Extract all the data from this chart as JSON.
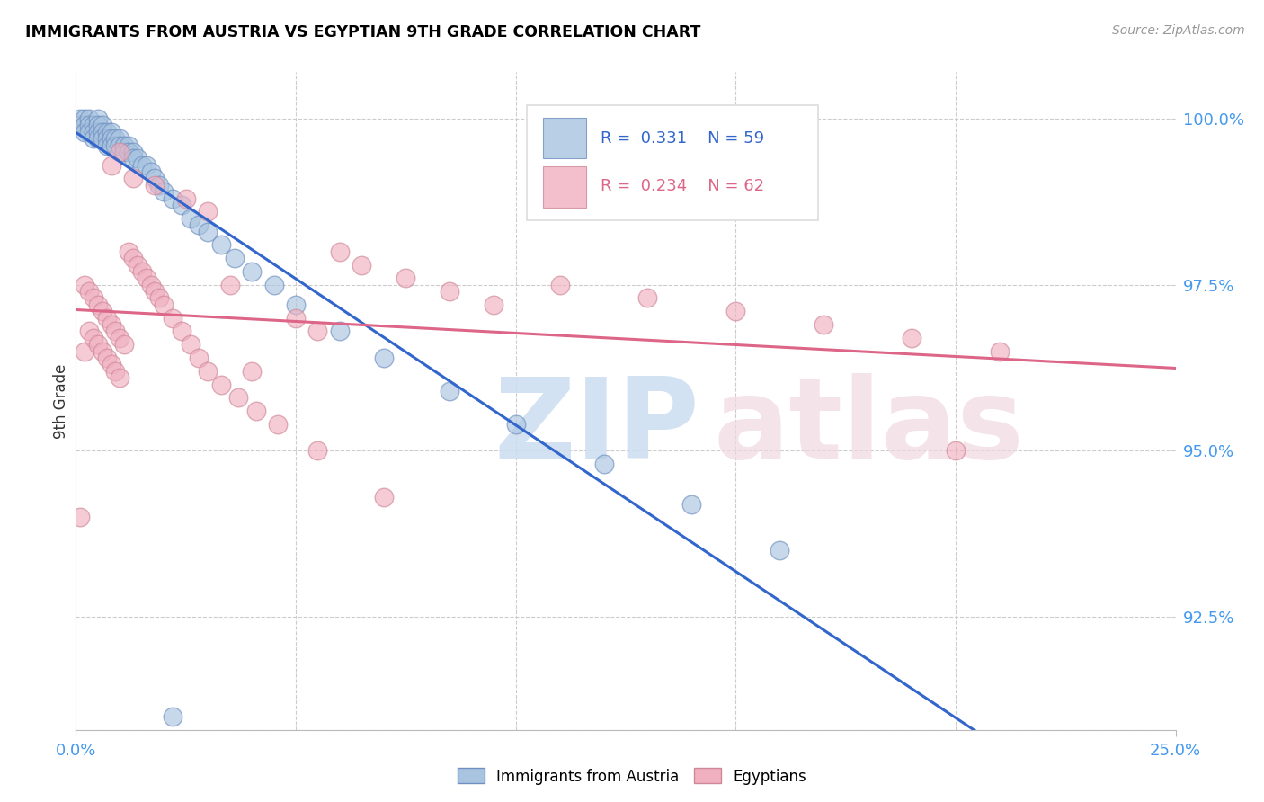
{
  "title": "IMMIGRANTS FROM AUSTRIA VS EGYPTIAN 9TH GRADE CORRELATION CHART",
  "source": "Source: ZipAtlas.com",
  "ylabel": "9th Grade",
  "blue_color": "#a8c4e0",
  "pink_color": "#f0b0c0",
  "blue_line_color": "#3366cc",
  "pink_line_color": "#dd6688",
  "blue_label": "Immigrants from Austria",
  "pink_label": "Egyptians",
  "blue_r": "0.331",
  "blue_n": "59",
  "pink_r": "0.234",
  "pink_n": "62",
  "xmin": 0.0,
  "xmax": 0.25,
  "ymin": 0.908,
  "ymax": 1.007,
  "yticks": [
    0.925,
    0.95,
    0.975,
    1.0
  ],
  "ytick_labels": [
    "92.5%",
    "95.0%",
    "97.5%",
    "100.0%"
  ],
  "blue_points_x": [
    0.001,
    0.001,
    0.002,
    0.002,
    0.002,
    0.003,
    0.003,
    0.003,
    0.004,
    0.004,
    0.004,
    0.005,
    0.005,
    0.005,
    0.005,
    0.006,
    0.006,
    0.006,
    0.007,
    0.007,
    0.007,
    0.008,
    0.008,
    0.008,
    0.009,
    0.009,
    0.01,
    0.01,
    0.011,
    0.011,
    0.012,
    0.012,
    0.013,
    0.013,
    0.014,
    0.015,
    0.016,
    0.017,
    0.018,
    0.019,
    0.02,
    0.022,
    0.024,
    0.026,
    0.028,
    0.03,
    0.033,
    0.036,
    0.04,
    0.045,
    0.05,
    0.06,
    0.07,
    0.085,
    0.1,
    0.12,
    0.14,
    0.16,
    0.022
  ],
  "blue_points_y": [
    1.0,
    0.999,
    1.0,
    0.999,
    0.998,
    1.0,
    0.999,
    0.998,
    0.999,
    0.998,
    0.997,
    1.0,
    0.999,
    0.998,
    0.997,
    0.999,
    0.998,
    0.997,
    0.998,
    0.997,
    0.996,
    0.998,
    0.997,
    0.996,
    0.997,
    0.996,
    0.997,
    0.996,
    0.996,
    0.995,
    0.996,
    0.995,
    0.995,
    0.994,
    0.994,
    0.993,
    0.993,
    0.992,
    0.991,
    0.99,
    0.989,
    0.988,
    0.987,
    0.985,
    0.984,
    0.983,
    0.981,
    0.979,
    0.977,
    0.975,
    0.972,
    0.968,
    0.964,
    0.959,
    0.954,
    0.948,
    0.942,
    0.935,
    0.91
  ],
  "pink_points_x": [
    0.001,
    0.002,
    0.002,
    0.003,
    0.003,
    0.004,
    0.004,
    0.005,
    0.005,
    0.006,
    0.006,
    0.007,
    0.007,
    0.008,
    0.008,
    0.009,
    0.009,
    0.01,
    0.01,
    0.011,
    0.012,
    0.013,
    0.014,
    0.015,
    0.016,
    0.017,
    0.018,
    0.019,
    0.02,
    0.022,
    0.024,
    0.026,
    0.028,
    0.03,
    0.033,
    0.037,
    0.041,
    0.046,
    0.05,
    0.055,
    0.06,
    0.065,
    0.075,
    0.085,
    0.095,
    0.11,
    0.13,
    0.15,
    0.17,
    0.19,
    0.21,
    0.01,
    0.008,
    0.013,
    0.018,
    0.025,
    0.03,
    0.035,
    0.04,
    0.055,
    0.07,
    0.2
  ],
  "pink_points_y": [
    0.94,
    0.975,
    0.965,
    0.974,
    0.968,
    0.973,
    0.967,
    0.972,
    0.966,
    0.971,
    0.965,
    0.97,
    0.964,
    0.969,
    0.963,
    0.968,
    0.962,
    0.967,
    0.961,
    0.966,
    0.98,
    0.979,
    0.978,
    0.977,
    0.976,
    0.975,
    0.974,
    0.973,
    0.972,
    0.97,
    0.968,
    0.966,
    0.964,
    0.962,
    0.96,
    0.958,
    0.956,
    0.954,
    0.97,
    0.968,
    0.98,
    0.978,
    0.976,
    0.974,
    0.972,
    0.975,
    0.973,
    0.971,
    0.969,
    0.967,
    0.965,
    0.995,
    0.993,
    0.991,
    0.99,
    0.988,
    0.986,
    0.975,
    0.962,
    0.95,
    0.943,
    0.95
  ]
}
